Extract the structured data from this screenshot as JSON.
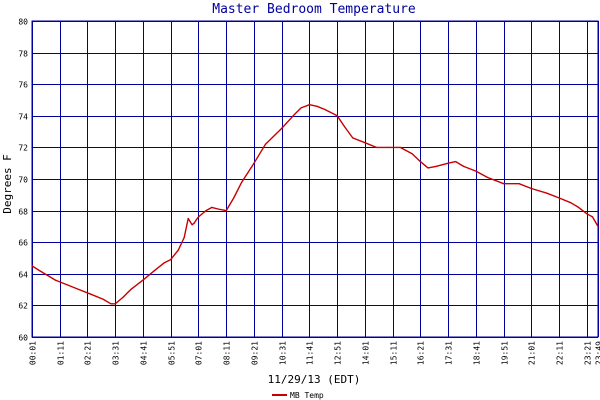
{
  "chart_data": {
    "type": "line",
    "title": "Master Bedroom Temperature",
    "xlabel": "11/29/13 (EDT)",
    "ylabel": "Degrees F",
    "ylim": [
      60,
      80
    ],
    "yticks": [
      60,
      62,
      64,
      66,
      68,
      70,
      72,
      74,
      76,
      78,
      80
    ],
    "xlim": [
      "00:01",
      "23:49"
    ],
    "xticks": [
      "00:01",
      "01:11",
      "02:21",
      "03:31",
      "04:41",
      "05:51",
      "07:01",
      "08:11",
      "09:21",
      "10:31",
      "11:41",
      "12:51",
      "14:01",
      "15:11",
      "16:21",
      "17:31",
      "18:41",
      "19:51",
      "21:01",
      "22:11",
      "23:21",
      "23:49"
    ],
    "grid": true,
    "legend": "bottom-left",
    "colors": {
      "grid": "#00009c",
      "series": "#c80000",
      "title": "#00009c"
    },
    "series": [
      {
        "name": "MB Temp",
        "x": [
          "00:01",
          "00:20",
          "00:40",
          "01:00",
          "01:30",
          "02:00",
          "02:30",
          "03:00",
          "03:20",
          "03:31",
          "03:50",
          "04:10",
          "04:41",
          "05:10",
          "05:35",
          "05:51",
          "06:10",
          "06:25",
          "06:35",
          "06:45",
          "06:50",
          "06:55",
          "07:01",
          "07:20",
          "07:35",
          "07:50",
          "08:11",
          "08:30",
          "08:50",
          "09:21",
          "09:50",
          "10:31",
          "11:00",
          "11:20",
          "11:41",
          "12:00",
          "12:20",
          "12:51",
          "13:10",
          "13:30",
          "14:01",
          "14:30",
          "15:00",
          "15:30",
          "16:00",
          "16:21",
          "16:40",
          "17:00",
          "17:31",
          "17:50",
          "18:10",
          "18:41",
          "19:10",
          "19:51",
          "20:30",
          "21:01",
          "21:40",
          "22:11",
          "22:40",
          "23:00",
          "23:21",
          "23:35",
          "23:49"
        ],
        "y": [
          64.5,
          64.2,
          63.9,
          63.6,
          63.3,
          63.0,
          62.7,
          62.4,
          62.1,
          62.1,
          62.5,
          63.0,
          63.6,
          64.2,
          64.7,
          64.9,
          65.5,
          66.3,
          67.5,
          67.1,
          67.2,
          67.4,
          67.6,
          68.0,
          68.2,
          68.1,
          68.0,
          68.8,
          69.8,
          71.0,
          72.2,
          73.2,
          74.0,
          74.5,
          74.7,
          74.6,
          74.4,
          74.0,
          73.3,
          72.6,
          72.3,
          72.0,
          72.0,
          72.0,
          71.6,
          71.1,
          70.7,
          70.8,
          71.0,
          71.1,
          70.8,
          70.5,
          70.1,
          69.7,
          69.7,
          69.4,
          69.1,
          68.8,
          68.5,
          68.2,
          67.8,
          67.6,
          67.0
        ]
      }
    ]
  }
}
